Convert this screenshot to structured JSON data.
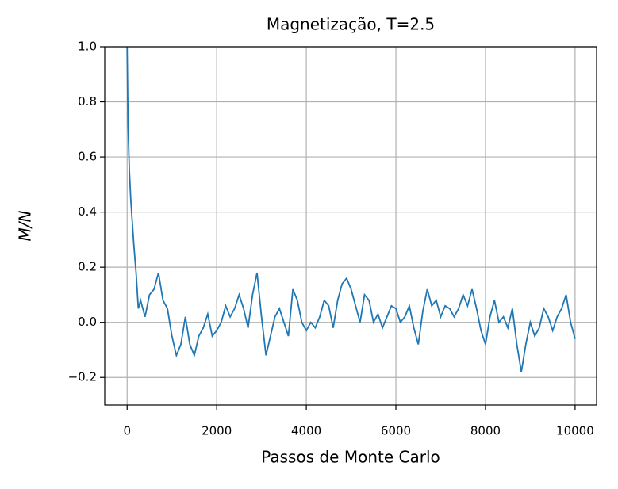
{
  "chart_data": {
    "type": "line",
    "title": "Magnetização, T=2.5",
    "xlabel": "Passos de Monte Carlo",
    "ylabel": "M/N",
    "xlim": [
      -500,
      10480
    ],
    "ylim": [
      -0.3,
      1.0
    ],
    "xticks": [
      0,
      2000,
      4000,
      6000,
      8000,
      10000
    ],
    "yticks": [
      {
        "value": -0.2,
        "label": "−0.2"
      },
      {
        "value": 0,
        "label": "0.0"
      },
      0.2,
      0.4,
      0.6,
      0.8,
      {
        "value": 1,
        "label": "1.0"
      }
    ],
    "grid": true,
    "series": [
      {
        "color": "#1f77b4",
        "x": [
          0,
          20,
          50,
          80,
          100,
          150,
          200,
          250,
          300,
          400,
          500,
          600,
          700,
          800,
          900,
          1000,
          1100,
          1200,
          1300,
          1400,
          1500,
          1600,
          1700,
          1800,
          1900,
          2000,
          2100,
          2200,
          2300,
          2400,
          2500,
          2600,
          2700,
          2800,
          2900,
          3000,
          3100,
          3200,
          3300,
          3400,
          3500,
          3600,
          3700,
          3800,
          3900,
          4000,
          4100,
          4200,
          4300,
          4400,
          4500,
          4600,
          4700,
          4800,
          4900,
          5000,
          5100,
          5200,
          5300,
          5400,
          5500,
          5600,
          5700,
          5800,
          5900,
          6000,
          6100,
          6200,
          6300,
          6400,
          6500,
          6600,
          6700,
          6800,
          6900,
          7000,
          7100,
          7200,
          7300,
          7400,
          7500,
          7600,
          7700,
          7800,
          7900,
          8000,
          8100,
          8200,
          8300,
          8400,
          8500,
          8600,
          8700,
          8800,
          8900,
          9000,
          9100,
          9200,
          9300,
          9400,
          9500,
          9600,
          9700,
          9800,
          9900,
          10000
        ],
        "values": [
          1.0,
          0.72,
          0.55,
          0.45,
          0.4,
          0.28,
          0.18,
          0.05,
          0.08,
          0.02,
          0.1,
          0.12,
          0.18,
          0.08,
          0.05,
          -0.05,
          -0.12,
          -0.08,
          0.02,
          -0.08,
          -0.12,
          -0.05,
          -0.02,
          0.03,
          -0.05,
          -0.03,
          0.0,
          0.06,
          0.02,
          0.05,
          0.1,
          0.05,
          -0.02,
          0.1,
          0.18,
          0.02,
          -0.12,
          -0.05,
          0.02,
          0.05,
          0.0,
          -0.05,
          0.12,
          0.08,
          0.0,
          -0.03,
          0.0,
          -0.02,
          0.02,
          0.08,
          0.06,
          -0.02,
          0.08,
          0.14,
          0.16,
          0.12,
          0.06,
          0.0,
          0.1,
          0.08,
          0.0,
          0.03,
          -0.02,
          0.02,
          0.06,
          0.05,
          0.0,
          0.02,
          0.06,
          -0.02,
          -0.08,
          0.04,
          0.12,
          0.06,
          0.08,
          0.02,
          0.06,
          0.05,
          0.02,
          0.05,
          0.1,
          0.06,
          0.12,
          0.05,
          -0.03,
          -0.08,
          0.02,
          0.08,
          0.0,
          0.02,
          -0.02,
          0.05,
          -0.08,
          -0.18,
          -0.08,
          0.0,
          -0.05,
          -0.02,
          0.05,
          0.02,
          -0.03,
          0.02,
          0.05,
          0.1,
          0.0,
          -0.06
        ]
      }
    ]
  }
}
